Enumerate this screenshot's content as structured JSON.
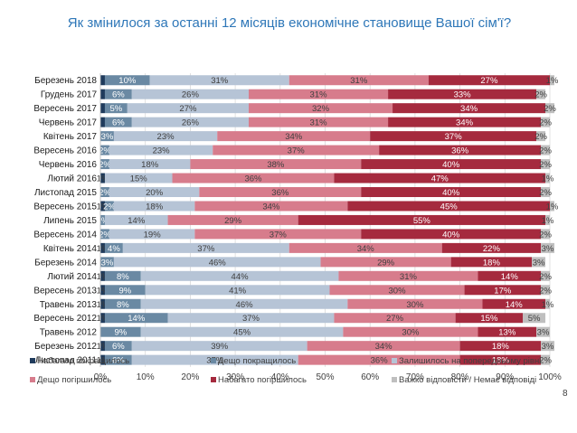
{
  "page_number": "8",
  "colors": {
    "navy": "#1f3b5c",
    "steel": "#6a89a3",
    "lightblue": "#b6c4d6",
    "pink": "#d77c8c",
    "crimson": "#a52a3e",
    "grey": "#bfbfbf"
  },
  "chart_data": {
    "type": "bar",
    "orientation": "horizontal",
    "stacked": true,
    "title": "Як змінилося за останні 12 місяців економічне становище Вашої сім'ї?",
    "xlim": [
      0,
      100
    ],
    "xticks": [
      "0%",
      "10%",
      "20%",
      "30%",
      "40%",
      "50%",
      "60%",
      "70%",
      "80%",
      "90%",
      "100%"
    ],
    "grid": true,
    "legend_position": "bottom",
    "categories": [
      "Березень 2018",
      "Грудень 2017",
      "Вересень 2017",
      "Червень 2017",
      "Квітень 2017",
      "Вересень 2016",
      "Червень 2016",
      "Лютий 2016",
      "Листопад 2015",
      "Вересень 2015",
      "Липень 2015",
      "Вересень 2014",
      "Квітень 2014",
      "Березень 2014",
      "Лютий 2014",
      "Вересень 2013",
      "Травень 2013",
      "Вересень 2012",
      "Травень 2012",
      "Березень 2012",
      "Листопад 2011"
    ],
    "series": [
      {
        "name": "Набагато покращилось",
        "color": "#1f3b5c",
        "values": [
          1,
          1,
          1,
          1,
          0,
          0,
          0,
          1,
          0,
          1,
          0,
          0,
          1,
          0,
          1,
          1,
          1,
          1,
          0,
          1,
          1
        ],
        "labels": [
          "",
          "",
          "",
          "",
          "",
          "",
          "",
          "1%",
          "",
          "1%",
          "",
          "",
          "1%",
          "",
          "1%",
          "1%",
          "1%",
          "1%",
          "",
          "1%",
          "1%"
        ]
      },
      {
        "name": "Дещо покращилось",
        "color": "#6a89a3",
        "values": [
          10,
          6,
          5,
          6,
          3,
          2,
          2,
          0,
          2,
          2,
          1,
          2,
          4,
          3,
          8,
          9,
          8,
          14,
          9,
          6,
          6
        ],
        "labels": [
          "10%",
          "6%",
          "5%",
          "6%",
          "3%",
          "2%",
          "2%",
          "",
          "2%",
          "2%",
          "1%",
          "2%",
          "4%",
          "3%",
          "8%",
          "9%",
          "8%",
          "14%",
          "9%",
          "6%",
          "6%"
        ]
      },
      {
        "name": "Залишилось на попередньому рівні",
        "color": "#b6c4d6",
        "values": [
          31,
          26,
          27,
          26,
          23,
          23,
          18,
          15,
          20,
          18,
          14,
          19,
          37,
          46,
          44,
          41,
          46,
          37,
          45,
          39,
          37
        ],
        "labels": [
          "31%",
          "26%",
          "27%",
          "26%",
          "23%",
          "23%",
          "18%",
          "15%",
          "20%",
          "18%",
          "14%",
          "19%",
          "37%",
          "46%",
          "44%",
          "41%",
          "46%",
          "37%",
          "45%",
          "39%",
          "37%"
        ]
      },
      {
        "name": "Дещо погіршилось",
        "color": "#d77c8c",
        "values": [
          31,
          31,
          32,
          31,
          34,
          37,
          38,
          36,
          36,
          34,
          29,
          37,
          34,
          29,
          31,
          30,
          30,
          27,
          30,
          34,
          36
        ],
        "labels": [
          "31%",
          "31%",
          "32%",
          "31%",
          "34%",
          "37%",
          "38%",
          "36%",
          "36%",
          "34%",
          "29%",
          "37%",
          "34%",
          "29%",
          "31%",
          "30%",
          "30%",
          "27%",
          "30%",
          "34%",
          "36%"
        ]
      },
      {
        "name": "Набагато погіршилось",
        "color": "#a52a3e",
        "values": [
          27,
          33,
          34,
          34,
          37,
          36,
          40,
          47,
          40,
          45,
          55,
          40,
          22,
          18,
          14,
          17,
          14,
          15,
          13,
          18,
          18
        ],
        "labels": [
          "27%",
          "33%",
          "34%",
          "34%",
          "37%",
          "36%",
          "40%",
          "47%",
          "40%",
          "45%",
          "55%",
          "40%",
          "22%",
          "18%",
          "14%",
          "17%",
          "14%",
          "15%",
          "13%",
          "18%",
          "18%"
        ]
      },
      {
        "name": "Важко відповісти / Немає відповіді",
        "color": "#bfbfbf",
        "values": [
          1,
          2,
          2,
          2,
          2,
          2,
          2,
          1,
          2,
          1,
          1,
          2,
          3,
          3,
          2,
          2,
          1,
          5,
          3,
          3,
          2
        ],
        "labels": [
          "1%",
          "2%",
          "2%",
          "2%",
          "2%",
          "2%",
          "2%",
          "1%",
          "2%",
          "1%",
          "1%",
          "2%",
          "3%",
          "3%",
          "2%",
          "2%",
          "1%",
          "5%",
          "3%",
          "3%",
          "2%"
        ]
      }
    ]
  }
}
